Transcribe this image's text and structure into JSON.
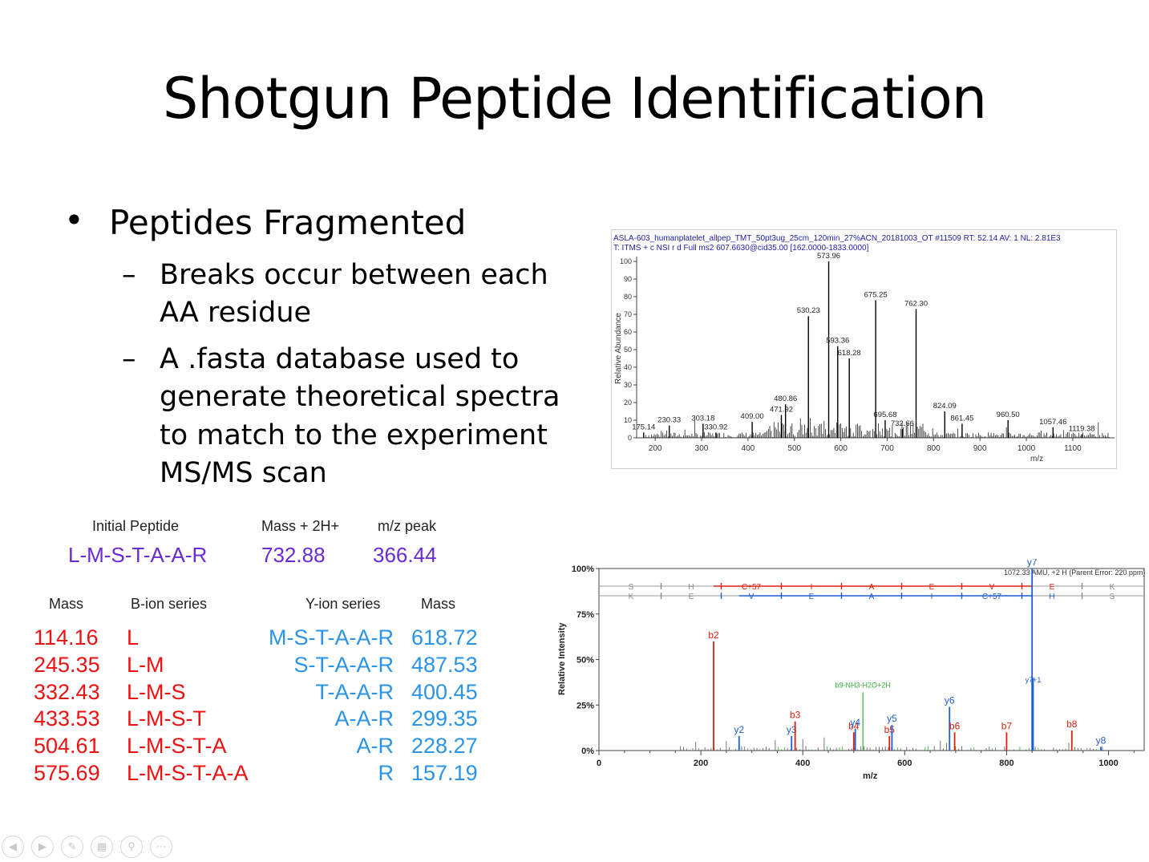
{
  "slide": {
    "title": "Shotgun Peptide Identification",
    "bullet_main": "Peptides Fragmented",
    "sub_bullets": [
      {
        "dash": "–",
        "lines": [
          "Breaks occur between each",
          "AA residue"
        ]
      },
      {
        "dash": "–",
        "lines": [
          "A .fasta database used to",
          "generate theoretical spectra",
          "to match to the experiment",
          "MS/MS scan"
        ]
      }
    ],
    "bullet_symbol": "•"
  },
  "peptide_table": {
    "headers": [
      "Initial Peptide",
      "Mass + 2H+",
      "m/z peak"
    ],
    "peptide": "L-M-S-T-A-A-R",
    "mass": "732.88",
    "mz": "366.44"
  },
  "ion_table": {
    "headers": {
      "b_mass": "Mass",
      "b_series": "B-ion series",
      "y_series": "Y-ion series",
      "y_mass": "Mass"
    },
    "rows": [
      {
        "b_mass": "114.16",
        "b_ion": "L",
        "y_ion": "M-S-T-A-A-R",
        "y_mass": "618.72"
      },
      {
        "b_mass": "245.35",
        "b_ion": "L-M",
        "y_ion": "S-T-A-A-R",
        "y_mass": "487.53"
      },
      {
        "b_mass": "332.43",
        "b_ion": "L-M-S",
        "y_ion": "T-A-A-R",
        "y_mass": "400.45"
      },
      {
        "b_mass": "433.53",
        "b_ion": "L-M-S-T",
        "y_ion": "A-A-R",
        "y_mass": "299.35"
      },
      {
        "b_mass": "504.61",
        "b_ion": "L-M-S-T-A",
        "y_ion": "A-R",
        "y_mass": "228.27"
      },
      {
        "b_mass": "575.69",
        "b_ion": "L-M-S-T-A-A",
        "y_ion": "R",
        "y_mass": "157.19"
      }
    ]
  },
  "chart_data": [
    {
      "type": "bar",
      "header_line1": "ASLA-603_humanplatelet_allpep_TMT_50pt3ug_25cm_120min_27%ACN_20181003_OT #11509   RT: 52.14   AV: 1   NL: 2.81E3",
      "header_line2": "T: ITMS + c NSI r d Full ms2 607.6630@cid35.00 [162.0000-1833.0000]",
      "xlabel": "m/z",
      "ylabel": "Relative Abundance",
      "xlim": [
        160,
        1190
      ],
      "ylim": [
        0,
        100
      ],
      "x_ticks": [
        "200",
        "300",
        "400",
        "500",
        "600",
        "700",
        "800",
        "900",
        "1000",
        "1100"
      ],
      "y_ticks": [
        "0",
        "10",
        "20",
        "30",
        "40",
        "50",
        "60",
        "70",
        "80",
        "90",
        "100"
      ],
      "peaks": [
        {
          "x": 175.14,
          "y": 3,
          "label": "175.14"
        },
        {
          "x": 230.33,
          "y": 7,
          "label": "230.33"
        },
        {
          "x": 303.18,
          "y": 8,
          "label": "303.18"
        },
        {
          "x": 330.92,
          "y": 3,
          "label": "330.92"
        },
        {
          "x": 409.0,
          "y": 9,
          "label": "409.00"
        },
        {
          "x": 471.92,
          "y": 13,
          "label": "471.92"
        },
        {
          "x": 480.86,
          "y": 19,
          "label": "480.86"
        },
        {
          "x": 530.23,
          "y": 69,
          "label": "530.23"
        },
        {
          "x": 573.96,
          "y": 100,
          "label": "573.96"
        },
        {
          "x": 593.36,
          "y": 52,
          "label": "593.36"
        },
        {
          "x": 618.28,
          "y": 45,
          "label": "618.28"
        },
        {
          "x": 675.25,
          "y": 78,
          "label": "675.25"
        },
        {
          "x": 695.68,
          "y": 10,
          "label": "695.68"
        },
        {
          "x": 732.66,
          "y": 5,
          "label": "732.66"
        },
        {
          "x": 762.3,
          "y": 73,
          "label": "762.30"
        },
        {
          "x": 824.09,
          "y": 15,
          "label": "824.09"
        },
        {
          "x": 861.45,
          "y": 8,
          "label": "861.45"
        },
        {
          "x": 960.5,
          "y": 10,
          "label": "960.50"
        },
        {
          "x": 1057.46,
          "y": 6,
          "label": "1057.46"
        },
        {
          "x": 1119.38,
          "y": 2,
          "label": "1119.38"
        }
      ]
    },
    {
      "type": "bar",
      "xlabel": "m/z",
      "ylabel": "Relative Intensity",
      "xlim": [
        0,
        1070
      ],
      "ylim": [
        0,
        100
      ],
      "x_ticks": [
        "0",
        "200",
        "400",
        "600",
        "800",
        "1000"
      ],
      "y_ticks": [
        "0%",
        "25%",
        "50%",
        "75%",
        "100%"
      ],
      "annotation": "1072.33 AMU, +2 H (Parent Error: 220 ppm)",
      "b_sequence": [
        "S",
        "H",
        "C+57",
        "I",
        "A",
        "E",
        "V",
        "E",
        "K"
      ],
      "y_sequence": [
        "K",
        "E",
        "V",
        "E",
        "A",
        "I",
        "C+57",
        "H",
        "S"
      ],
      "colors": {
        "b": "#dd2211",
        "y": "#1f5fcf",
        "other": "#33aa33"
      },
      "peaks": [
        {
          "x": 225,
          "y": 60,
          "label": "b2",
          "ion": "b"
        },
        {
          "x": 275,
          "y": 8,
          "label": "y2",
          "ion": "y"
        },
        {
          "x": 378,
          "y": 8,
          "label": "y3",
          "ion": "y"
        },
        {
          "x": 385,
          "y": 16,
          "label": "b3",
          "ion": "b"
        },
        {
          "x": 500,
          "y": 10,
          "label": "b4",
          "ion": "b"
        },
        {
          "x": 503,
          "y": 12,
          "label": "y4",
          "ion": "y"
        },
        {
          "x": 518,
          "y": 32,
          "label": "b9-NH3-H2O+2H",
          "ion": "other"
        },
        {
          "x": 570,
          "y": 8,
          "label": "b5",
          "ion": "b"
        },
        {
          "x": 575,
          "y": 14,
          "label": "y5",
          "ion": "y"
        },
        {
          "x": 688,
          "y": 24,
          "label": "y6",
          "ion": "y"
        },
        {
          "x": 698,
          "y": 10,
          "label": "b6",
          "ion": "b"
        },
        {
          "x": 800,
          "y": 10,
          "label": "b7",
          "ion": "b"
        },
        {
          "x": 850,
          "y": 100,
          "label": "y7",
          "ion": "y"
        },
        {
          "x": 852,
          "y": 40,
          "label": "y7+1",
          "ion": "y"
        },
        {
          "x": 928,
          "y": 11,
          "label": "b8",
          "ion": "b"
        },
        {
          "x": 985,
          "y": 2,
          "label": "y8",
          "ion": "y"
        }
      ]
    }
  ]
}
